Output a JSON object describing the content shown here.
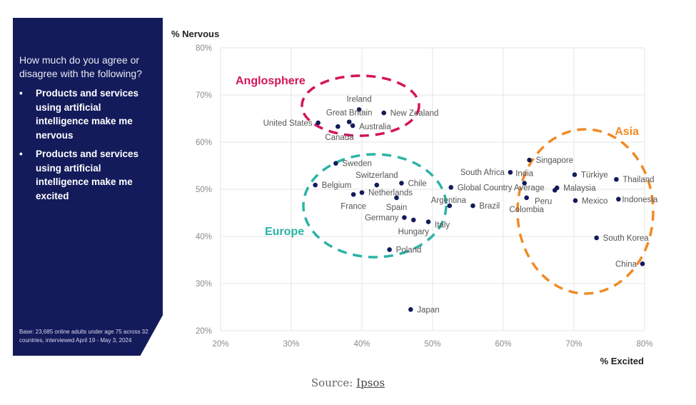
{
  "panel": {
    "question": "How much do you agree or disagree with the following?",
    "statements": [
      "Products and services using artificial intelligence make me nervous",
      "Products and services using artificial intelligence make me excited"
    ],
    "base_note": "Base: 23,685 online adults under age 75 across 32 countries, interviewed April 19 - May 3, 2024"
  },
  "source": {
    "prefix": "Source: ",
    "link": "Ipsos"
  },
  "chart_data": {
    "type": "scatter",
    "xlabel": "% Excited",
    "ylabel": "% Nervous",
    "xlim": [
      20,
      80
    ],
    "ylim": [
      20,
      80
    ],
    "xticks": [
      "20%",
      "30%",
      "40%",
      "50%",
      "60%",
      "70%",
      "80%"
    ],
    "yticks": [
      "20%",
      "30%",
      "40%",
      "50%",
      "60%",
      "70%",
      "80%"
    ],
    "grid": true,
    "groups": [
      {
        "name": "Anglosphere",
        "color": "#d4145a"
      },
      {
        "name": "Europe",
        "color": "#2bb3a6"
      },
      {
        "name": "Asia",
        "color": "#f08a24"
      }
    ],
    "point_color": "#141b5b",
    "points": [
      {
        "name": "Ireland",
        "x": 39.6,
        "y": 66.9
      },
      {
        "name": "New Zealand",
        "x": 43.1,
        "y": 66.2
      },
      {
        "name": "United States",
        "x": 33.8,
        "y": 64.1
      },
      {
        "name": "Canada",
        "x": 36.6,
        "y": 63.3
      },
      {
        "name": "Great Britain",
        "x": 38.2,
        "y": 64.3
      },
      {
        "name": "Australia",
        "x": 38.7,
        "y": 63.5
      },
      {
        "name": "Sweden",
        "x": 36.3,
        "y": 55.5
      },
      {
        "name": "Belgium",
        "x": 33.4,
        "y": 50.9
      },
      {
        "name": "Switzerland",
        "x": 42.1,
        "y": 50.9
      },
      {
        "name": "Chile",
        "x": 45.6,
        "y": 51.3
      },
      {
        "name": "Netherlands",
        "x": 40.0,
        "y": 49.3
      },
      {
        "name": "France",
        "x": 38.8,
        "y": 48.9
      },
      {
        "name": "Spain",
        "x": 44.9,
        "y": 48.2
      },
      {
        "name": "Germany",
        "x": 46.0,
        "y": 44.0
      },
      {
        "name": "Hungary",
        "x": 47.3,
        "y": 43.5
      },
      {
        "name": "Italy",
        "x": 49.4,
        "y": 43.1
      },
      {
        "name": "Argentina",
        "x": 52.4,
        "y": 46.5
      },
      {
        "name": "Global Country Average",
        "x": 52.6,
        "y": 50.4
      },
      {
        "name": "Poland",
        "x": 43.9,
        "y": 37.2
      },
      {
        "name": "Japan",
        "x": 46.9,
        "y": 24.5
      },
      {
        "name": "Brazil",
        "x": 55.7,
        "y": 46.5
      },
      {
        "name": "Singapore",
        "x": 63.7,
        "y": 56.2
      },
      {
        "name": "South Africa",
        "x": 61.0,
        "y": 53.6
      },
      {
        "name": "India",
        "x": 63.0,
        "y": 51.3
      },
      {
        "name": "Colombia",
        "x": 63.3,
        "y": 48.2
      },
      {
        "name": "Peru",
        "x": 67.3,
        "y": 49.8
      },
      {
        "name": "Malaysia",
        "x": 67.6,
        "y": 50.3
      },
      {
        "name": "Türkiye",
        "x": 70.1,
        "y": 53.1
      },
      {
        "name": "Mexico",
        "x": 70.2,
        "y": 47.6
      },
      {
        "name": "Thailand",
        "x": 76.0,
        "y": 52.1
      },
      {
        "name": "Indonesia",
        "x": 76.3,
        "y": 47.9
      },
      {
        "name": "South Korea",
        "x": 73.2,
        "y": 39.7
      },
      {
        "name": "China",
        "x": 79.7,
        "y": 34.2
      }
    ]
  }
}
